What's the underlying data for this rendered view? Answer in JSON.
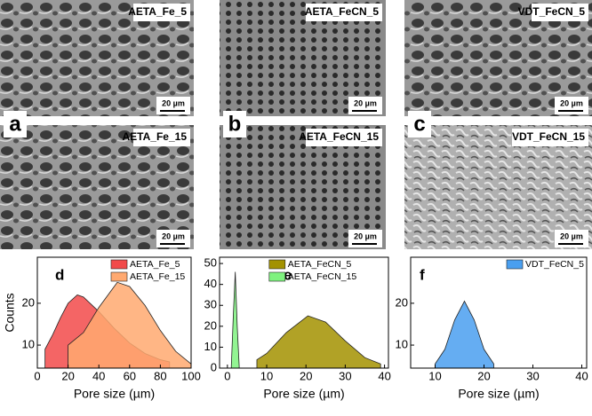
{
  "images": [
    {
      "label": "AETA_Fe_5",
      "scale": "20 µm"
    },
    {
      "label": "AETA_FeCN_5",
      "scale": "20 µm"
    },
    {
      "label": "VDT_FeCN_5",
      "scale": "20 µm"
    },
    {
      "label": "AETA_Fe_15",
      "scale": "20 µm",
      "panel": "a"
    },
    {
      "label": "AETA_FeCN_15",
      "scale": "20 µm",
      "panel": "b"
    },
    {
      "label": "VDT_FeCN_15",
      "scale": "20 µm",
      "panel": "c"
    }
  ],
  "chart_data": [
    {
      "type": "area",
      "panel": "d",
      "ylabel": "Counts",
      "xlabel": "Pore size (µm)",
      "legend": "upper right",
      "xlim": [
        0,
        100
      ],
      "ylim": [
        4.5,
        31
      ],
      "xticks": [
        0,
        20,
        40,
        60,
        80,
        100
      ],
      "yticks": [
        10,
        20
      ],
      "series": [
        {
          "name": "AETA_Fe_5",
          "color": "#f24a4a",
          "x": [
            5,
            10,
            15,
            20,
            26,
            30,
            40,
            50,
            60,
            70,
            80,
            86
          ],
          "values": [
            9,
            12.5,
            16.5,
            20,
            22,
            21.5,
            18,
            14,
            10.5,
            8,
            6.5,
            6
          ]
        },
        {
          "name": "AETA_Fe_15",
          "color": "#ffa970",
          "x": [
            20,
            30,
            40,
            52,
            60,
            70,
            80,
            90,
            100
          ],
          "values": [
            10,
            13,
            19,
            25,
            24,
            19.5,
            13.5,
            8.5,
            5.5
          ]
        }
      ]
    },
    {
      "type": "area",
      "panel": "e",
      "xlabel": "Pore size (µm)",
      "legend": "upper center",
      "xlim": [
        -2,
        41
      ],
      "ylim": [
        0,
        53
      ],
      "xticks": [
        0,
        10,
        20,
        30,
        40
      ],
      "yticks": [
        0,
        10,
        20,
        30,
        40,
        50
      ],
      "series": [
        {
          "name": "AETA_FeCN_5",
          "color": "#a39200",
          "x": [
            7.5,
            10,
            15,
            20.5,
            25,
            30,
            35,
            39
          ],
          "values": [
            4,
            7,
            17,
            25,
            22,
            13,
            5,
            2
          ]
        },
        {
          "name": "AETA_FeCN_15",
          "color": "#7ff27f",
          "x": [
            1,
            1.5,
            2,
            2.5,
            3
          ],
          "values": [
            1,
            25,
            46,
            20,
            1
          ]
        }
      ]
    },
    {
      "type": "area",
      "panel": "f",
      "xlabel": "Pore size (µm)",
      "legend": "upper right",
      "xlim": [
        5,
        41
      ],
      "ylim": [
        4.5,
        31
      ],
      "xticks": [
        10,
        20,
        30,
        40
      ],
      "yticks": [
        10,
        20
      ],
      "series": [
        {
          "name": "VDT_FeCN_5",
          "color": "#4a9ff0",
          "x": [
            10,
            12,
            14,
            16,
            18,
            20,
            22
          ],
          "values": [
            5.5,
            9,
            16,
            20.5,
            16,
            9,
            5.5
          ]
        }
      ]
    }
  ]
}
